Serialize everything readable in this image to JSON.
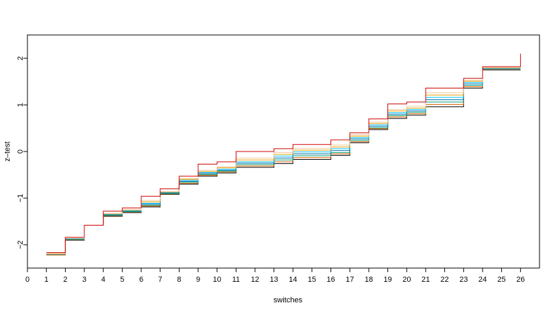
{
  "chart_data": {
    "type": "line",
    "step": true,
    "xlabel": "switches",
    "ylabel": "z–test",
    "xlim": [
      0,
      27
    ],
    "ylim": [
      -2.5,
      2.5
    ],
    "x_ticks": [
      "0",
      "1",
      "2",
      "3",
      "4",
      "5",
      "6",
      "7",
      "8",
      "9",
      "10",
      "11",
      "12",
      "13",
      "14",
      "15",
      "16",
      "17",
      "18",
      "19",
      "20",
      "21",
      "22",
      "23",
      "24",
      "25",
      "26"
    ],
    "y_ticks": [
      -2,
      -1,
      0,
      1,
      2
    ],
    "y_tick_labels": [
      "−2",
      "−1",
      "0",
      "1",
      "2"
    ],
    "grid": false,
    "x": [
      1,
      2,
      3,
      4,
      5,
      6,
      7,
      8,
      9,
      10,
      11,
      12,
      13,
      14,
      15,
      16,
      17,
      18,
      19,
      20,
      21,
      22,
      23,
      24,
      25,
      26
    ],
    "series": [
      {
        "color": "#000000",
        "values": [
          -2.22,
          -1.9,
          -1.58,
          -1.39,
          -1.31,
          -1.19,
          -0.92,
          -0.7,
          -0.53,
          -0.46,
          -0.34,
          -0.34,
          -0.26,
          -0.17,
          -0.17,
          -0.08,
          0.19,
          0.47,
          0.71,
          0.78,
          0.96,
          0.96,
          1.36,
          1.75,
          1.75,
          1.75
        ]
      },
      {
        "color": "#D55E00",
        "values": [
          -2.22,
          -1.89,
          -1.58,
          -1.38,
          -1.3,
          -1.17,
          -0.91,
          -0.68,
          -0.51,
          -0.44,
          -0.31,
          -0.31,
          -0.22,
          -0.13,
          -0.13,
          -0.05,
          0.21,
          0.49,
          0.74,
          0.81,
          1.01,
          1.01,
          1.39,
          1.76,
          1.76,
          1.76
        ]
      },
      {
        "color": "#009E73",
        "values": [
          -2.21,
          -1.88,
          -1.58,
          -1.37,
          -1.29,
          -1.15,
          -0.9,
          -0.66,
          -0.49,
          -0.42,
          -0.28,
          -0.28,
          -0.18,
          -0.09,
          -0.09,
          -0.02,
          0.24,
          0.51,
          0.77,
          0.84,
          1.06,
          1.06,
          1.42,
          1.77,
          1.77,
          1.77
        ]
      },
      {
        "color": "#0072B2",
        "values": [
          -2.21,
          -1.87,
          -1.58,
          -1.36,
          -1.28,
          -1.13,
          -0.89,
          -0.64,
          -0.47,
          -0.4,
          -0.25,
          -0.25,
          -0.14,
          -0.05,
          -0.05,
          0.02,
          0.27,
          0.54,
          0.8,
          0.87,
          1.11,
          1.11,
          1.45,
          1.77,
          1.77,
          1.77
        ]
      },
      {
        "color": "#00BFFF",
        "values": [
          -2.2,
          -1.87,
          -1.58,
          -1.35,
          -1.27,
          -1.11,
          -0.88,
          -0.62,
          -0.45,
          -0.38,
          -0.22,
          -0.22,
          -0.1,
          -0.01,
          -0.01,
          0.06,
          0.3,
          0.57,
          0.83,
          0.9,
          1.16,
          1.16,
          1.48,
          1.78,
          1.78,
          1.78
        ]
      },
      {
        "color": "#E69F00",
        "values": [
          -2.2,
          -1.86,
          -1.58,
          -1.34,
          -1.26,
          -1.08,
          -0.87,
          -0.6,
          -0.43,
          -0.35,
          -0.18,
          -0.18,
          -0.06,
          0.03,
          0.03,
          0.1,
          0.33,
          0.6,
          0.87,
          0.93,
          1.21,
          1.21,
          1.51,
          1.79,
          1.79,
          1.79
        ]
      },
      {
        "color": "#F0C8A0",
        "values": [
          -2.19,
          -1.86,
          -1.58,
          -1.33,
          -1.25,
          -1.05,
          -0.86,
          -0.58,
          -0.4,
          -0.33,
          -0.14,
          -0.14,
          -0.02,
          0.07,
          0.07,
          0.14,
          0.36,
          0.63,
          0.9,
          0.97,
          1.26,
          1.26,
          1.53,
          1.8,
          1.8,
          1.8
        ]
      },
      {
        "color": "#CC0000",
        "values": [
          -2.17,
          -1.84,
          -1.58,
          -1.28,
          -1.21,
          -0.96,
          -0.8,
          -0.53,
          -0.27,
          -0.22,
          0.0,
          0.0,
          0.06,
          0.15,
          0.15,
          0.25,
          0.4,
          0.7,
          1.02,
          1.06,
          1.36,
          1.36,
          1.57,
          1.82,
          1.82,
          2.1
        ]
      }
    ]
  }
}
